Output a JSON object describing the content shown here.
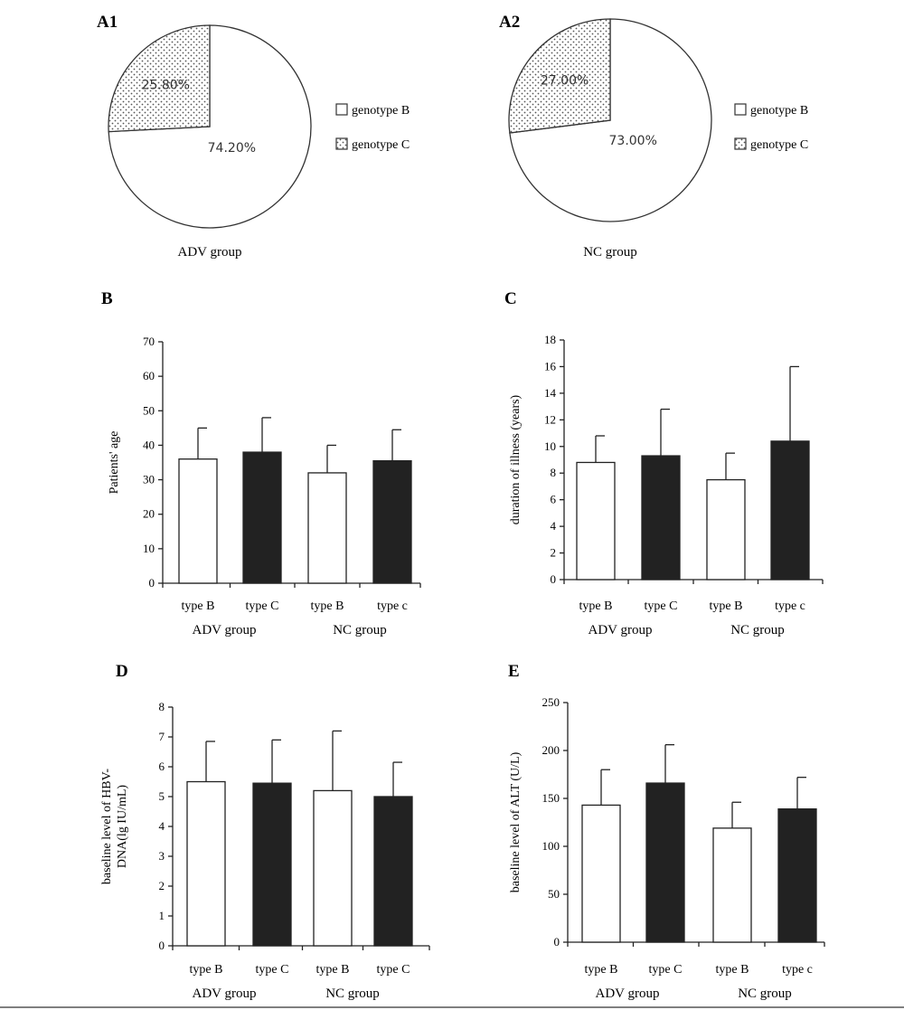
{
  "chart_data": [
    {
      "panel": "A1",
      "type": "pie",
      "caption": "ADV group",
      "labels": [
        "genotype B",
        "genotype C"
      ],
      "values": [
        74.2,
        25.8
      ],
      "value_labels": [
        "74.20%",
        "25.80%"
      ],
      "fills": [
        "white",
        "dotted"
      ]
    },
    {
      "panel": "A2",
      "type": "pie",
      "caption": "NC group",
      "labels": [
        "genotype B",
        "genotype C"
      ],
      "values": [
        73.0,
        27.0
      ],
      "value_labels": [
        "73.00%",
        "27.00%"
      ],
      "fills": [
        "white",
        "dotted"
      ]
    },
    {
      "panel": "B",
      "type": "bar",
      "ylabel": "Patients' age",
      "ylim": [
        0,
        70
      ],
      "yticks": [
        "0",
        "10",
        "20",
        "30",
        "40",
        "50",
        "60",
        "70"
      ],
      "categories": [
        "type B",
        "type C",
        "type B",
        "type c"
      ],
      "groups": [
        "ADV group",
        "NC group"
      ],
      "values": [
        36,
        38,
        32,
        35.5
      ],
      "errors": [
        9,
        10,
        8,
        9
      ],
      "fills": [
        "white",
        "black",
        "white",
        "black"
      ]
    },
    {
      "panel": "C",
      "type": "bar",
      "ylabel": "duration of illness (years)",
      "ylim": [
        0,
        18
      ],
      "yticks": [
        "0",
        "2",
        "4",
        "6",
        "8",
        "10",
        "12",
        "14",
        "16",
        "18"
      ],
      "categories": [
        "type B",
        "type C",
        "type B",
        "type c"
      ],
      "groups": [
        "ADV group",
        "NC group"
      ],
      "values": [
        8.8,
        9.3,
        7.5,
        10.4
      ],
      "errors": [
        2.0,
        3.5,
        2.0,
        5.6
      ],
      "fills": [
        "white",
        "black",
        "white",
        "black"
      ]
    },
    {
      "panel": "D",
      "type": "bar",
      "ylabel_lines": [
        "baseline level of HBV-",
        "DNA(lg IU/mL)"
      ],
      "ylim": [
        0,
        8
      ],
      "yticks": [
        "0",
        "1",
        "2",
        "3",
        "4",
        "5",
        "6",
        "7",
        "8"
      ],
      "categories": [
        "type B",
        "type C",
        "type B",
        "type C"
      ],
      "groups": [
        "ADV group",
        "NC group"
      ],
      "values": [
        5.5,
        5.45,
        5.2,
        5.0
      ],
      "errors": [
        1.35,
        1.45,
        2.0,
        1.15
      ],
      "fills": [
        "white",
        "black",
        "white",
        "black"
      ]
    },
    {
      "panel": "E",
      "type": "bar",
      "ylabel": "baseline level of ALT (U/L)",
      "ylim": [
        0,
        250
      ],
      "yticks": [
        "0",
        "50",
        "100",
        "150",
        "200",
        "250"
      ],
      "categories": [
        "type B",
        "type C",
        "type B",
        "type c"
      ],
      "groups": [
        "ADV group",
        "NC group"
      ],
      "values": [
        143,
        166,
        119,
        139
      ],
      "errors": [
        37,
        40,
        27,
        33
      ],
      "fills": [
        "white",
        "black",
        "white",
        "black"
      ]
    }
  ]
}
